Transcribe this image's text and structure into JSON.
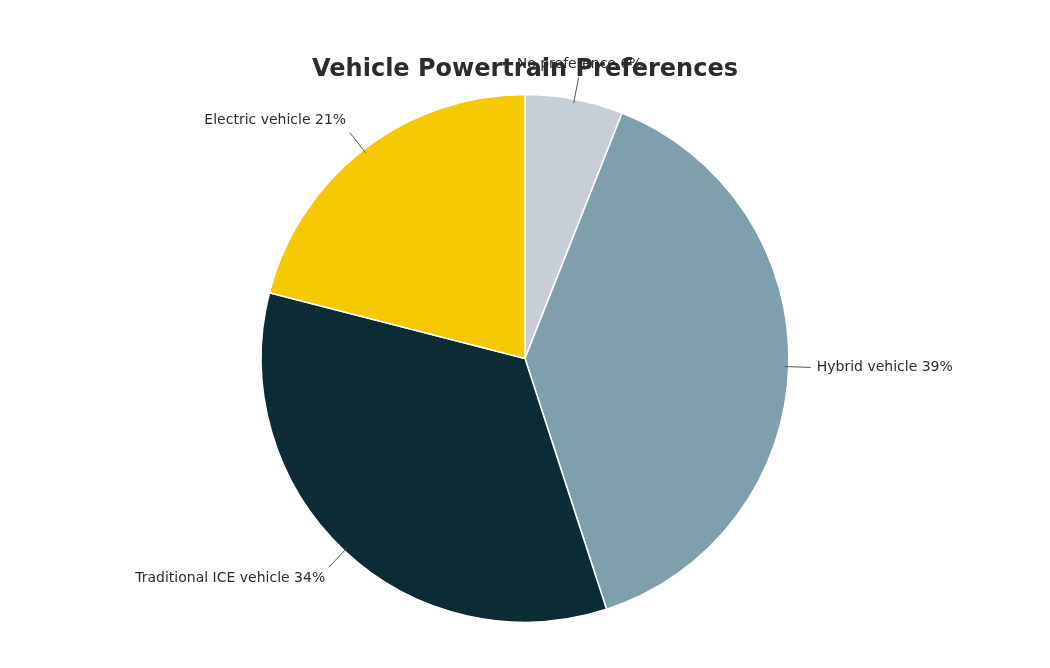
{
  "chart_data": {
    "type": "pie",
    "title": "Vehicle Powertrain Preferences",
    "categories": [
      "No preference 6%",
      "Hybrid vehicle 39%",
      "Traditional ICE vehicle 34%",
      "Electric vehicle 21%"
    ],
    "values": [
      6,
      39,
      34,
      21
    ],
    "colors": [
      "#c5cfd5",
      "#7f9fac",
      "#0d2b35",
      "#f5c800"
    ]
  }
}
